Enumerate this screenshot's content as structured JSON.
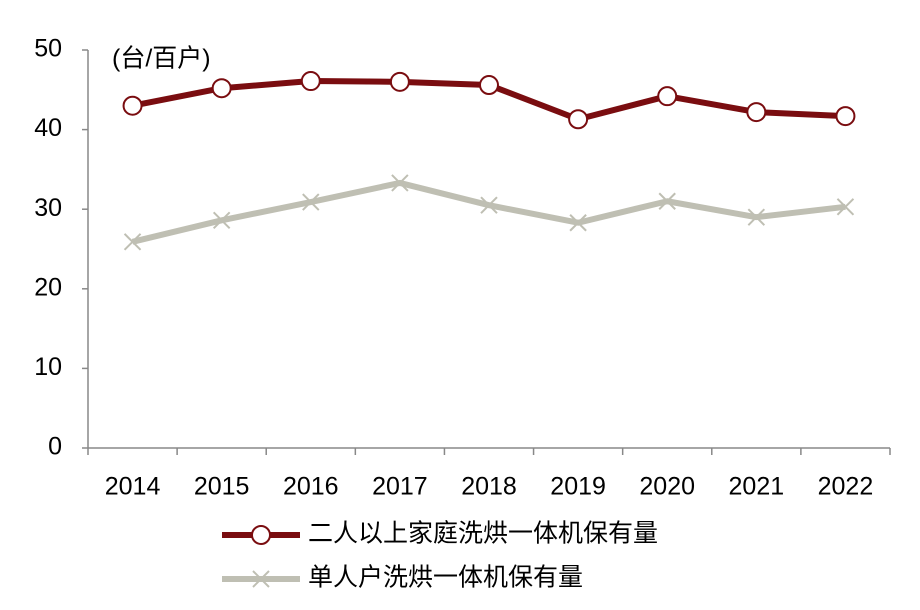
{
  "chart_data": {
    "type": "line",
    "annotation": "(台/百户)",
    "categories": [
      "2014",
      "2015",
      "2016",
      "2017",
      "2018",
      "2019",
      "2020",
      "2021",
      "2022"
    ],
    "series": [
      {
        "name": "二人以上家庭洗烘一体机保有量",
        "color": "#7a0d10",
        "marker": "circle",
        "values": [
          43.0,
          45.2,
          46.1,
          46.0,
          45.6,
          41.3,
          44.2,
          42.2,
          41.7
        ]
      },
      {
        "name": "单人户洗烘一体机保有量",
        "color": "#bfbfb3",
        "marker": "x",
        "values": [
          25.9,
          28.6,
          30.9,
          33.3,
          30.5,
          28.3,
          31.0,
          29.0,
          30.3
        ]
      }
    ],
    "ylim": [
      0,
      50
    ],
    "yticks": [
      0,
      10,
      20,
      30,
      40,
      50
    ],
    "grid": false,
    "legend": "bottom"
  }
}
